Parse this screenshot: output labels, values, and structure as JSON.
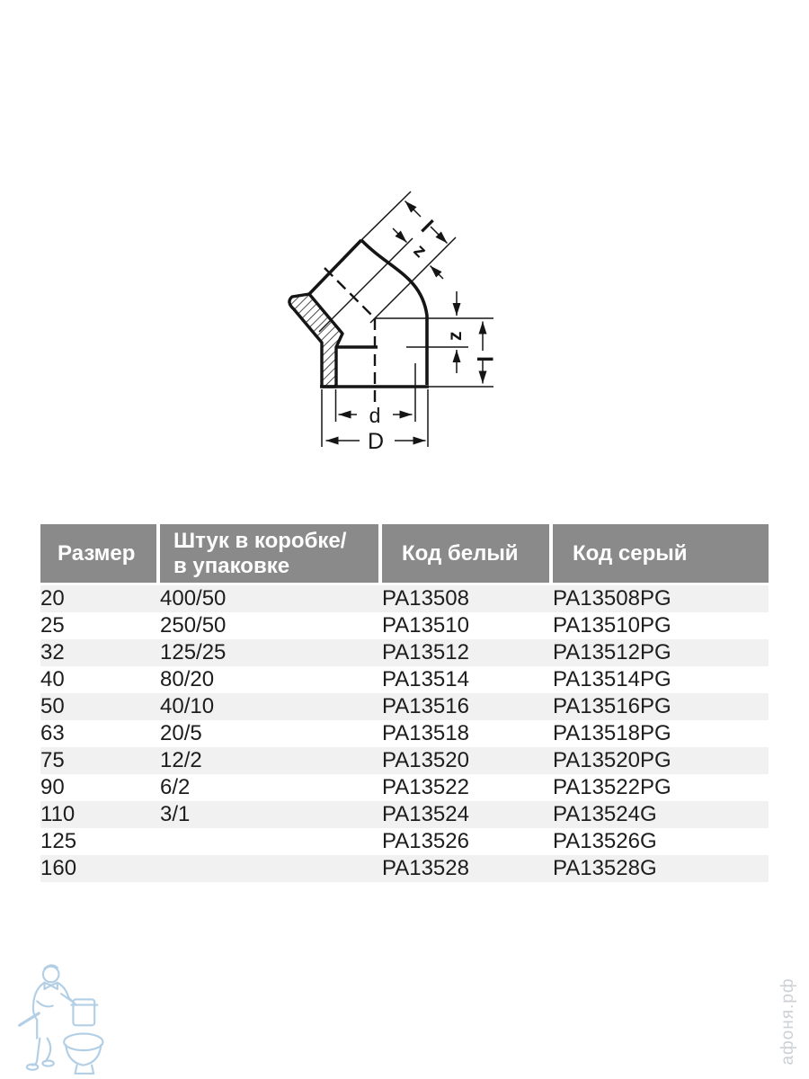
{
  "colors": {
    "header_bg": "#8a8a8a",
    "header_text": "#ffffff",
    "row_stripe": "#f1f1f1",
    "body_text": "#1d1d1d",
    "drawing": "#151515",
    "watermark_blue": "#b3cfe6",
    "watermark_gray": "#ccd1d6"
  },
  "diagram": {
    "description": "45-degree elbow socket fitting, section view with dimensions",
    "labels": {
      "l_top": "l",
      "z_top": "z",
      "z_right": "z",
      "l_right": "l",
      "d": "d",
      "D": "D"
    }
  },
  "table": {
    "header": {
      "size": "Размер",
      "qty_line1": "Штук в коробке/",
      "qty_line2": "в упаковке",
      "code_white": "Код белый",
      "code_grey": "Код серый"
    },
    "rows": [
      [
        "20",
        "400/50",
        "PA13508",
        "PA13508PG"
      ],
      [
        "25",
        "250/50",
        "PA13510",
        "PA13510PG"
      ],
      [
        "32",
        "125/25",
        "PA13512",
        "PA13512PG"
      ],
      [
        "40",
        "80/20",
        "PA13514",
        "PA13514PG"
      ],
      [
        "50",
        "40/10",
        "PA13516",
        "PA13516PG"
      ],
      [
        "63",
        "20/5",
        "PA13518",
        "PA13518PG"
      ],
      [
        "75",
        "12/2",
        "PA13520",
        "PA13520PG"
      ],
      [
        "90",
        "6/2",
        "PA13522",
        "PA13522PG"
      ],
      [
        "110",
        "3/1",
        "PA13524",
        "PA13524G"
      ],
      [
        "125",
        "",
        "PA13526",
        "PA13526G"
      ],
      [
        "160",
        "",
        "PA13528",
        "PA13528G"
      ]
    ]
  },
  "watermarks": {
    "site": "афоня.рф",
    "logo": "plumber-with-toilet"
  }
}
